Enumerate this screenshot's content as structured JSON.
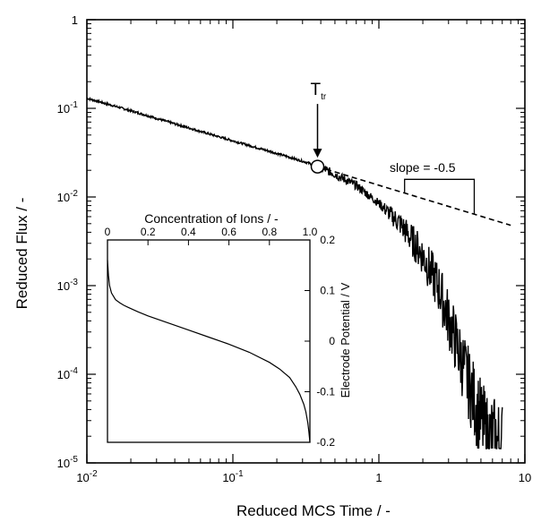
{
  "chart_data": [
    {
      "type": "line",
      "title": "",
      "xlabel": "Reduced MCS Time / -",
      "ylabel": "Reduced Flux / -",
      "xscale": "log",
      "yscale": "log",
      "xlim": [
        0.01,
        10
      ],
      "ylim": [
        1e-05,
        1
      ],
      "grid": false,
      "x_ticks": [
        {
          "value": 0.01,
          "base": "10",
          "exp": "-2"
        },
        {
          "value": 0.1,
          "base": "10",
          "exp": "-1"
        },
        {
          "value": 1,
          "base": "1",
          "exp": ""
        },
        {
          "value": 10,
          "base": "10",
          "exp": ""
        }
      ],
      "y_ticks": [
        {
          "value": 1e-05,
          "base": "10",
          "exp": "-5"
        },
        {
          "value": 0.0001,
          "base": "10",
          "exp": "-4"
        },
        {
          "value": 0.001,
          "base": "10",
          "exp": "-3"
        },
        {
          "value": 0.01,
          "base": "10",
          "exp": "-2"
        },
        {
          "value": 0.1,
          "base": "10",
          "exp": "-1"
        },
        {
          "value": 1,
          "base": "1",
          "exp": ""
        }
      ],
      "series": [
        {
          "style": "solid-noisy",
          "x": [
            0.01,
            0.02,
            0.05,
            0.1,
            0.2,
            0.38,
            0.5,
            0.7,
            1.0,
            1.4,
            2.0,
            2.6,
            3.2,
            3.8,
            4.5,
            5.5,
            7.0
          ],
          "y": [
            0.13,
            0.094,
            0.06,
            0.043,
            0.031,
            0.0225,
            0.018,
            0.0135,
            0.0085,
            0.005,
            0.0022,
            0.0009,
            0.0003,
            0.00012,
            5e-05,
            2e-05,
            1.5e-05
          ]
        },
        {
          "style": "dashed",
          "x": [
            0.38,
            8.0
          ],
          "y": [
            0.022,
            0.0048
          ]
        }
      ],
      "annotations": {
        "transition_label": {
          "main": "T",
          "sub": "tr",
          "x": 0.38,
          "y": 0.022
        },
        "slope_label": "slope = -0.5",
        "slope_triangle": {
          "x0": 1.5,
          "x1": 4.5,
          "y_top": 0.0158
        }
      }
    },
    {
      "type": "line",
      "title": "",
      "xlabel": "Concentration of Ions / -",
      "ylabel": "Electrode Potential / V",
      "xlim": [
        0,
        1.0
      ],
      "ylim": [
        -0.2,
        0.2
      ],
      "x_tick_labels": [
        "0",
        "0.2",
        "0.4",
        "0.6",
        "0.8",
        "1.0"
      ],
      "y_tick_labels": [
        "0.2",
        "0.1",
        "0",
        "-0.1",
        "-0.2"
      ],
      "x_ticks": [
        0,
        0.2,
        0.4,
        0.6,
        0.8,
        1.0
      ],
      "y_ticks": [
        0.2,
        0.1,
        0,
        -0.1,
        -0.2
      ],
      "series": [
        {
          "x": [
            0.0,
            0.005,
            0.01,
            0.02,
            0.04,
            0.06,
            0.08,
            0.1,
            0.15,
            0.2,
            0.3,
            0.4,
            0.5,
            0.6,
            0.7,
            0.8,
            0.85,
            0.9,
            0.93,
            0.95,
            0.97,
            0.98,
            0.99,
            0.995,
            1.0
          ],
          "y": [
            0.16,
            0.13,
            0.11,
            0.095,
            0.082,
            0.076,
            0.071,
            0.067,
            0.058,
            0.05,
            0.036,
            0.022,
            0.008,
            -0.006,
            -0.022,
            -0.042,
            -0.055,
            -0.072,
            -0.09,
            -0.105,
            -0.125,
            -0.14,
            -0.162,
            -0.18,
            -0.2
          ]
        }
      ]
    }
  ]
}
